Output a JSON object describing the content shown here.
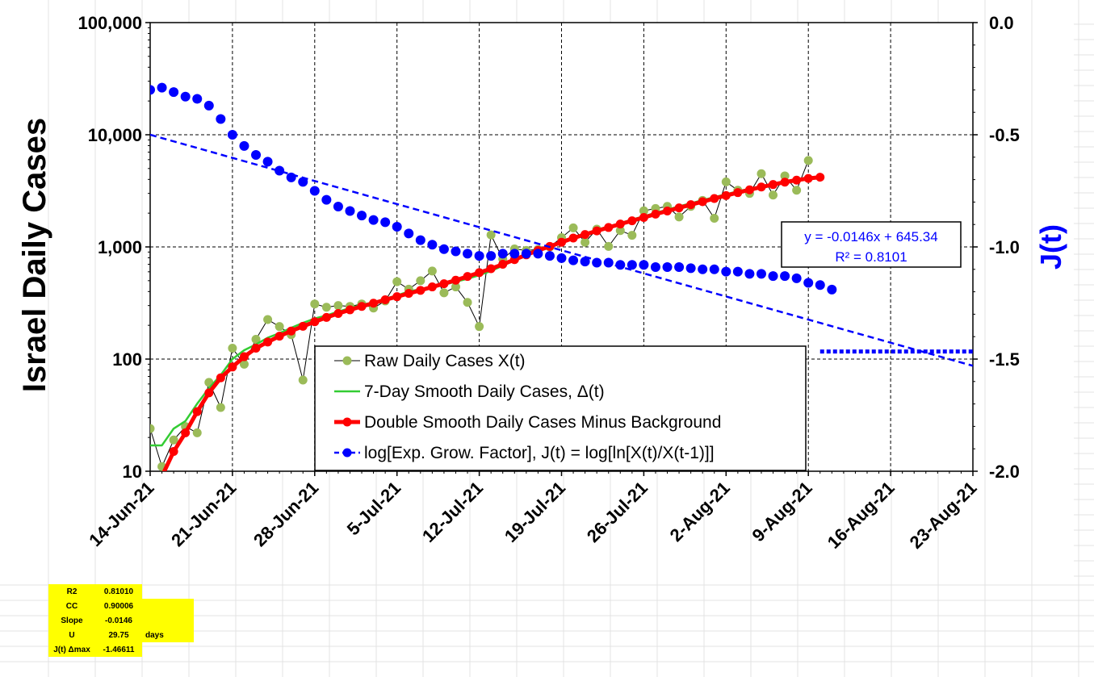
{
  "chart_data": {
    "type": "line",
    "ylabel": "Israel Daily Cases",
    "y2label": "J(t)",
    "yscale": "log",
    "ylim": [
      10,
      100000
    ],
    "y2lim": [
      -2.0,
      0.0
    ],
    "y_ticks": [
      "10",
      "100",
      "1,000",
      "10,000",
      "100,000"
    ],
    "y2_ticks": [
      "-2.0",
      "-1.5",
      "-1.0",
      "-0.5",
      "0.0"
    ],
    "x_ticks": [
      "14-Jun-21",
      "21-Jun-21",
      "28-Jun-21",
      "5-Jul-21",
      "12-Jul-21",
      "19-Jul-21",
      "26-Jul-21",
      "2-Aug-21",
      "9-Aug-21",
      "16-Aug-21",
      "23-Aug-21"
    ],
    "x_start": "14-Jun-21",
    "x_range_days": [
      0,
      70
    ],
    "grid": true,
    "legend_position": "bottom-center",
    "series": [
      {
        "name": "Raw Daily Cases X(t)",
        "axis": "left",
        "color": "#9bbb59",
        "values": [
          24,
          11,
          19,
          25,
          22,
          62,
          37,
          125,
          90,
          150,
          225,
          195,
          165,
          65,
          310,
          290,
          300,
          295,
          310,
          285,
          330,
          490,
          420,
          500,
          610,
          390,
          440,
          320,
          195,
          1280,
          780,
          960,
          930,
          950,
          1000,
          1210,
          1480,
          1100,
          1440,
          1010,
          1400,
          1270,
          2100,
          2200,
          2300,
          1850,
          2300,
          2600,
          1800,
          3800,
          3200,
          3000,
          4500,
          2900,
          4300,
          3200,
          5900
        ]
      },
      {
        "name": "7-Day Smooth Daily Cases, Δ(t)",
        "axis": "left",
        "color": "#33cc33",
        "values": [
          17,
          17,
          24,
          28,
          40,
          55,
          72,
          100,
          120,
          135,
          155,
          170,
          190,
          210,
          230,
          245,
          265,
          285,
          305,
          320,
          345,
          370,
          400,
          420,
          440,
          460,
          490,
          520,
          560,
          610,
          680,
          760,
          850,
          940,
          1030,
          1120,
          1220,
          1310,
          1420,
          1520,
          1630,
          1750,
          1880,
          2010,
          2150,
          2300,
          2450,
          2610,
          2780,
          2950,
          3130,
          3300,
          3480,
          3650,
          3800,
          3950,
          4100
        ]
      },
      {
        "name": "Double Smooth Daily Cases Minus Background",
        "axis": "left",
        "color": "#ff0000",
        "values": [
          null,
          9,
          15,
          22,
          34,
          50,
          68,
          85,
          105,
          125,
          142,
          160,
          178,
          196,
          215,
          235,
          255,
          275,
          295,
          315,
          338,
          360,
          385,
          410,
          440,
          470,
          505,
          545,
          590,
          640,
          700,
          770,
          850,
          930,
          1010,
          1100,
          1200,
          1290,
          1390,
          1490,
          1600,
          1710,
          1830,
          1960,
          2090,
          2230,
          2380,
          2530,
          2700,
          2870,
          3050,
          3230,
          3420,
          3600,
          3780,
          3940,
          4080,
          4180
        ]
      },
      {
        "name": "log[Exp. Grow. Factor], J(t) = log[ln[X(t)/X(t-1)]]",
        "axis": "right",
        "color": "#0000ff",
        "values": [
          -0.3,
          -0.29,
          -0.31,
          -0.33,
          -0.34,
          -0.37,
          -0.43,
          -0.5,
          -0.55,
          -0.59,
          -0.62,
          -0.66,
          -0.69,
          -0.71,
          -0.75,
          -0.79,
          -0.82,
          -0.84,
          -0.86,
          -0.88,
          -0.89,
          -0.91,
          -0.94,
          -0.97,
          -0.99,
          -1.01,
          -1.02,
          -1.03,
          -1.04,
          -1.04,
          -1.03,
          -1.03,
          -1.03,
          -1.03,
          -1.04,
          -1.05,
          -1.06,
          -1.065,
          -1.07,
          -1.07,
          -1.08,
          -1.08,
          -1.08,
          -1.09,
          -1.09,
          -1.09,
          -1.095,
          -1.1,
          -1.1,
          -1.11,
          -1.11,
          -1.12,
          -1.12,
          -1.13,
          -1.13,
          -1.14,
          -1.16,
          -1.17,
          -1.19
        ]
      }
    ],
    "trendline": {
      "axis": "right",
      "color": "#0000ff",
      "from": [
        0,
        -0.5
      ],
      "to": [
        70,
        -1.53
      ]
    },
    "jmax_line": {
      "axis": "right",
      "color": "#0000ff",
      "y": -1.4661,
      "x_range": [
        57,
        70
      ]
    },
    "annotation": {
      "line1": "y = -0.0146x  + 645.34",
      "line2": "R² = 0.8101"
    }
  },
  "stats_table": [
    {
      "label": "R2",
      "value": "0.81010",
      "unit": ""
    },
    {
      "label": "CC",
      "value": "0.90006",
      "unit": ""
    },
    {
      "label": "Slope",
      "value": "-0.0146",
      "unit": ""
    },
    {
      "label": "U",
      "value": "29.75",
      "unit": "days"
    },
    {
      "label": "J(t) Δmax",
      "value": "-1.46611",
      "unit": ""
    }
  ]
}
